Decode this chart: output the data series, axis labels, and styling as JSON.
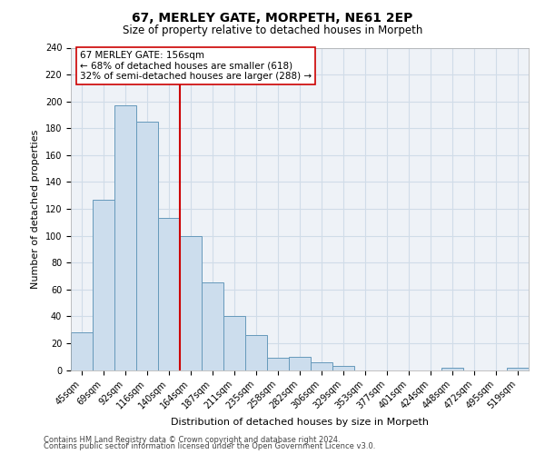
{
  "title": "67, MERLEY GATE, MORPETH, NE61 2EP",
  "subtitle": "Size of property relative to detached houses in Morpeth",
  "xlabel": "Distribution of detached houses by size in Morpeth",
  "ylabel": "Number of detached properties",
  "footnote1": "Contains HM Land Registry data © Crown copyright and database right 2024.",
  "footnote2": "Contains public sector information licensed under the Open Government Licence v3.0.",
  "bins": [
    "45sqm",
    "69sqm",
    "92sqm",
    "116sqm",
    "140sqm",
    "164sqm",
    "187sqm",
    "211sqm",
    "235sqm",
    "258sqm",
    "282sqm",
    "306sqm",
    "329sqm",
    "353sqm",
    "377sqm",
    "401sqm",
    "424sqm",
    "448sqm",
    "472sqm",
    "495sqm",
    "519sqm"
  ],
  "values": [
    28,
    127,
    197,
    185,
    113,
    100,
    65,
    40,
    26,
    9,
    10,
    6,
    3,
    0,
    0,
    0,
    0,
    2,
    0,
    0,
    2
  ],
  "bar_color": "#ccdded",
  "bar_edge_color": "#6699bb",
  "property_line_color": "#cc0000",
  "annotation_text": "67 MERLEY GATE: 156sqm\n← 68% of detached houses are smaller (618)\n32% of semi-detached houses are larger (288) →",
  "ylim": [
    0,
    240
  ],
  "yticks": [
    0,
    20,
    40,
    60,
    80,
    100,
    120,
    140,
    160,
    180,
    200,
    220,
    240
  ],
  "grid_color": "#d0dce8",
  "bg_color": "#eef2f7",
  "title_fontsize": 10,
  "subtitle_fontsize": 8.5,
  "tick_fontsize": 7,
  "ylabel_fontsize": 8,
  "xlabel_fontsize": 8,
  "footnote_fontsize": 6,
  "annot_fontsize": 7.5
}
